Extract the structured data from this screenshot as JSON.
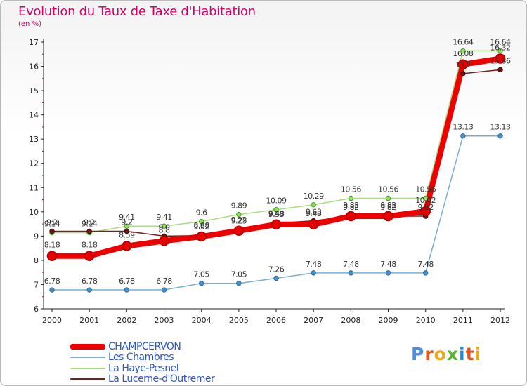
{
  "header": {
    "title": "Evolution du Taux de Taxe d'Habitation",
    "unit": "(en %)"
  },
  "logo": {
    "text": "Proxiti",
    "letter_colors": [
      "#4a8fe0",
      "#e8541c",
      "#f0a81a",
      "#5ab433",
      "#1a8fd8",
      "#e8541c",
      "#f0a81a"
    ]
  },
  "chart_data": {
    "type": "line",
    "title": "Evolution du Taux de Taxe d'Habitation",
    "ylabel": "(en %)",
    "xlabel": "",
    "x": [
      "2000",
      "2001",
      "2002",
      "2003",
      "2004",
      "2005",
      "2006",
      "2007",
      "2008",
      "2009",
      "2010",
      "2011",
      "2012"
    ],
    "ylim": [
      6,
      17
    ],
    "yticks": [
      "6",
      "7",
      "8",
      "9",
      "10",
      "11",
      "12",
      "13",
      "14",
      "15",
      "16",
      "17"
    ],
    "grid": false,
    "legend_position": "bottom-left",
    "series": [
      {
        "name": "CHAMPCERVON",
        "color": "#ee0000",
        "values": [
          8.18,
          8.18,
          8.59,
          8.8,
          8.98,
          9.22,
          9.48,
          9.48,
          9.82,
          9.82,
          10.02,
          16.08,
          16.32
        ],
        "labels": [
          "8.18",
          "8.18",
          "8.59",
          "8.8",
          "8.98",
          "9.22",
          "9.48",
          "9.48",
          "9.82",
          "9.82",
          "10.02",
          "16.08",
          "16.32"
        ]
      },
      {
        "name": "Les Chambres",
        "color": "#7aaed0",
        "values": [
          6.78,
          6.78,
          6.78,
          6.78,
          7.05,
          7.05,
          7.26,
          7.48,
          7.48,
          7.48,
          7.48,
          13.13,
          13.13
        ],
        "labels": [
          "6.78",
          "6.78",
          "6.78",
          "6.78",
          "7.05",
          "7.05",
          "7.26",
          "7.48",
          "7.48",
          "7.48",
          "7.48",
          "13.13",
          "13.13"
        ]
      },
      {
        "name": "La Haye-Pesnel",
        "color": "#a6df80",
        "values": [
          9.14,
          9.14,
          9.41,
          9.41,
          9.6,
          9.89,
          10.09,
          10.29,
          10.56,
          10.56,
          10.56,
          16.64,
          16.64
        ],
        "labels": [
          "9.14",
          "9.14",
          "9.41",
          "9.41",
          "9.6",
          "9.89",
          "10.09",
          "10.29",
          "10.56",
          "10.56",
          "10.56",
          "16.64",
          "16.64"
        ]
      },
      {
        "name": "La Lucerne-d'Outremer",
        "color": "#7a1e1e",
        "values": [
          9.2,
          9.2,
          9.2,
          9.0,
          9.02,
          9.25,
          9.53,
          9.63,
          9.82,
          9.82,
          9.82,
          15.7,
          15.86
        ],
        "labels": [
          "9.2",
          "9.2",
          "9.2",
          "9.0",
          "9.02",
          "9.25",
          "9.53",
          "9.63",
          "9.82",
          "9.82",
          "9.82",
          "15.7",
          "15.86"
        ]
      }
    ]
  }
}
